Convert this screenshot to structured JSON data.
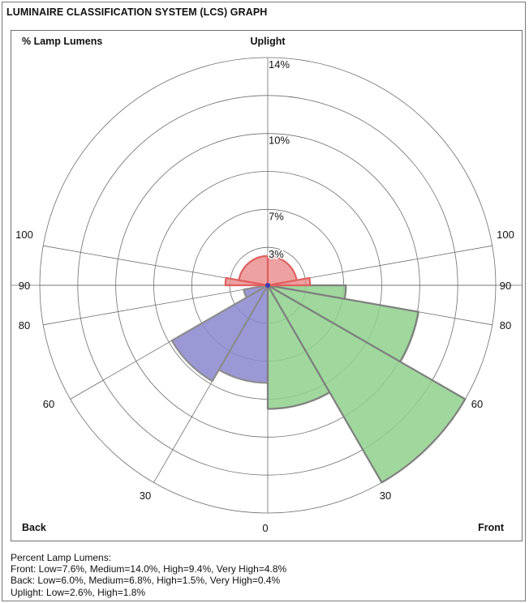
{
  "title": "LUMINAIRE CLASSIFICATION SYSTEM (LCS) GRAPH",
  "chart_data": {
    "type": "polar",
    "title": "LUMINAIRE CLASSIFICATION SYSTEM (LCS) GRAPH",
    "radial_axis_label": "% Lamp Lumens",
    "corner_labels": {
      "top": "Uplight",
      "bottom_left": "Back",
      "bottom_right": "Front"
    },
    "radial_ticks": [
      "3%",
      "7%",
      "10%",
      "14%"
    ],
    "radial_max": 14,
    "angle_ticks_right": [
      "30",
      "60",
      "80",
      "90",
      "100"
    ],
    "angle_ticks_left": [
      "30",
      "60",
      "80",
      "90",
      "100"
    ],
    "angle_tick_bottom": "0",
    "series": [
      {
        "name": "Front",
        "color": "#8fd08c",
        "stroke": "#7f7f7f",
        "zones": [
          {
            "zone": "Low",
            "angle_from": 0,
            "angle_to": 30,
            "value": 7.6
          },
          {
            "zone": "Medium",
            "angle_from": 30,
            "angle_to": 60,
            "value": 14.0
          },
          {
            "zone": "High",
            "angle_from": 60,
            "angle_to": 80,
            "value": 9.4
          },
          {
            "zone": "Very High",
            "angle_from": 80,
            "angle_to": 90,
            "value": 4.8
          }
        ]
      },
      {
        "name": "Back",
        "color": "#8a86cf",
        "stroke": "#8c8c8c",
        "zones": [
          {
            "zone": "Low",
            "angle_from": 0,
            "angle_to": 30,
            "value": 6.0
          },
          {
            "zone": "Medium",
            "angle_from": 30,
            "angle_to": 60,
            "value": 6.8
          },
          {
            "zone": "High",
            "angle_from": 60,
            "angle_to": 80,
            "value": 1.5
          },
          {
            "zone": "Very High",
            "angle_from": 80,
            "angle_to": 90,
            "value": 0.4
          }
        ]
      },
      {
        "name": "Uplight",
        "color": "#e88a8a",
        "stroke": "#e06060",
        "zones": [
          {
            "zone": "Low",
            "angle_from": 90,
            "angle_to": 100,
            "value": 2.6
          },
          {
            "zone": "High",
            "angle_from": 100,
            "angle_to": 180,
            "value": 1.8
          }
        ]
      }
    ],
    "summary": {
      "heading": "Percent Lamp Lumens:",
      "front": "Front: Low=7.6%, Medium=14.0%, High=9.4%, Very High=4.8%",
      "back": "Back: Low=6.0%, Medium=6.8%, High=1.5%, Very High=0.4%",
      "uplight": "Uplight: Low=2.6%, High=1.8%"
    }
  }
}
